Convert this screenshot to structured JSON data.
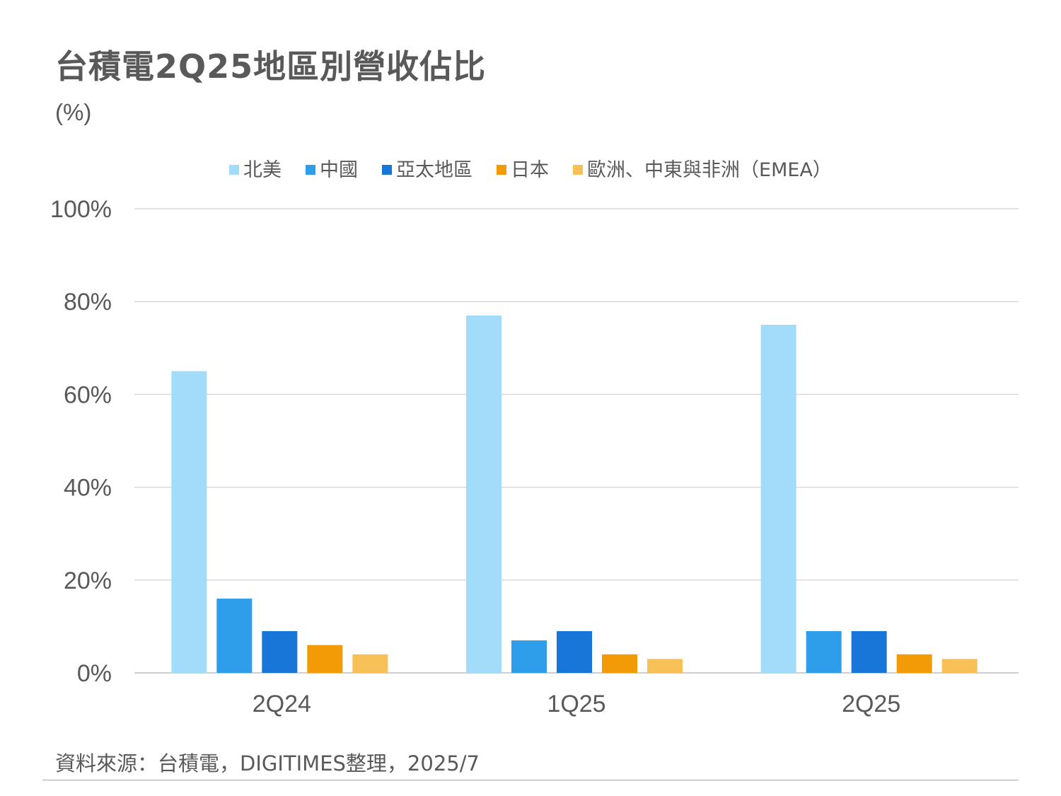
{
  "title": "台積電2Q25地區別營收佔比",
  "unit": "(%)",
  "source": "資料來源：台積電，DIGITIMES整理，2025/7",
  "chart_data": {
    "type": "bar",
    "title": "台積電2Q25地區別營收佔比",
    "ylabel": "(%)",
    "xlabel": "",
    "categories": [
      "2Q24",
      "1Q25",
      "2Q25"
    ],
    "ylim": [
      0,
      100
    ],
    "yticks": [
      0,
      20,
      40,
      60,
      80,
      100
    ],
    "ytick_labels": [
      "0%",
      "20%",
      "40%",
      "60%",
      "80%",
      "100%"
    ],
    "grid": true,
    "legend_position": "top",
    "series": [
      {
        "name": "北美",
        "color": "#a3dcfa",
        "values": [
          65,
          77,
          75
        ]
      },
      {
        "name": "中國",
        "color": "#2f9eea",
        "values": [
          16,
          7,
          9
        ]
      },
      {
        "name": "亞太地區",
        "color": "#1976d9",
        "values": [
          9,
          9,
          9
        ]
      },
      {
        "name": "日本",
        "color": "#f29b06",
        "values": [
          6,
          4,
          4
        ]
      },
      {
        "name": "歐洲、中東與非洲（EMEA）",
        "color": "#f8c158",
        "values": [
          4,
          3,
          3
        ]
      }
    ]
  }
}
